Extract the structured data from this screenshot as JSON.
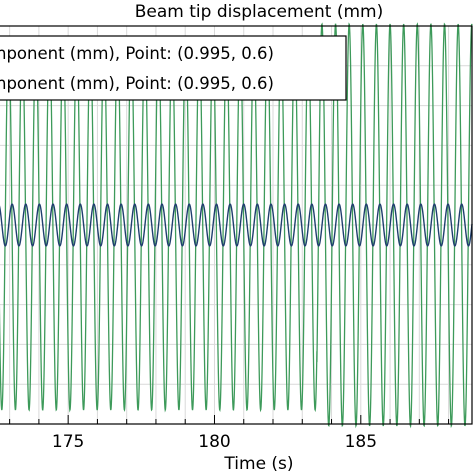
{
  "chart_data": {
    "type": "line",
    "title": "Beam tip displacement (mm)",
    "xlabel": "Time (s)",
    "ylabel": "",
    "xlim": [
      172.5,
      188.8
    ],
    "ylim": [
      -1.0,
      1.0
    ],
    "xticks": [
      175,
      180,
      185
    ],
    "tick_labels": [
      "175",
      "180",
      "185"
    ],
    "grid": true,
    "legend": {
      "placement": "top-left",
      "entries": [
        "nponent (mm), Point: (0.995, 0.6)",
        "nponent (mm), Point: (0.995, 0.6)"
      ]
    },
    "series": [
      {
        "color": "#3d9a5a",
        "period": 0.4655,
        "phase": 172.5,
        "segments": [
          {
            "x": [
              172.5,
              183.5
            ],
            "amplitude": 0.93
          },
          {
            "x": [
              183.5,
              188.8
            ],
            "amplitude": 1.01
          }
        ]
      },
      {
        "color": "#1f3f6e",
        "period": 0.4655,
        "phase": 172.62,
        "segments": [
          {
            "x": [
              172.5,
              188.8
            ],
            "amplitude": 0.105
          }
        ]
      }
    ]
  }
}
